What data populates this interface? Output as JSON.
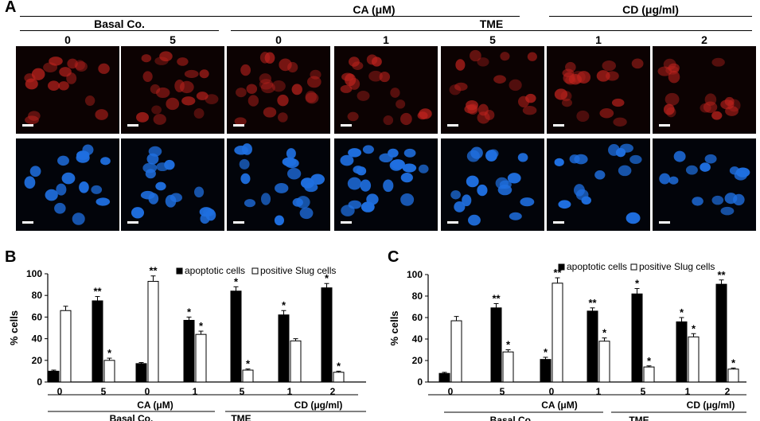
{
  "panel_a": {
    "letter": "A",
    "header_ca": "CA (μM)",
    "header_cd": "CD (μg/ml)",
    "group_basal": "Basal Co.",
    "group_tme": "TME",
    "conc_labels": [
      "0",
      "5",
      "0",
      "1",
      "5",
      "1",
      "2"
    ]
  },
  "panel_b": {
    "letter": "B"
  },
  "panel_c": {
    "letter": "C"
  },
  "chart_data": [
    {
      "type": "bar",
      "panel": "B",
      "ylabel": "% cells",
      "ylim": [
        0,
        100
      ],
      "yticks": [
        "0",
        "20",
        "40",
        "60",
        "80",
        "100"
      ],
      "categories": [
        "0",
        "5",
        "0",
        "1",
        "5",
        "1",
        "2"
      ],
      "series": [
        {
          "name": "apoptotic cells",
          "color": "#000000",
          "values": [
            10,
            75,
            17,
            57,
            84,
            62,
            87
          ],
          "errors": [
            1,
            4,
            1,
            3,
            4,
            4,
            4
          ],
          "marks": [
            "",
            "**",
            "",
            "*",
            "*",
            "*",
            "*"
          ]
        },
        {
          "name": "positive Slug cells",
          "color": "#ffffff",
          "values": [
            66,
            20,
            93,
            44,
            11,
            38,
            9
          ],
          "errors": [
            4,
            2,
            5,
            3,
            1,
            2,
            1
          ],
          "marks": [
            "",
            "*",
            "**",
            "*",
            "*",
            "",
            "*"
          ]
        }
      ],
      "group_labels": [
        "Basal Co.",
        "CA (μM)",
        "TME",
        "CD (μg/ml)"
      ],
      "legend_position": "top-right"
    },
    {
      "type": "bar",
      "panel": "C",
      "ylabel": "% cells",
      "ylim": [
        0,
        100
      ],
      "yticks": [
        "0",
        "20",
        "40",
        "60",
        "80",
        "100"
      ],
      "categories": [
        "0",
        "5",
        "0",
        "1",
        "5",
        "1",
        "2"
      ],
      "series": [
        {
          "name": "apoptotic cells",
          "color": "#000000",
          "values": [
            8,
            69,
            21,
            66,
            82,
            56,
            91
          ],
          "errors": [
            1,
            4,
            2,
            3,
            5,
            4,
            4
          ],
          "marks": [
            "",
            "**",
            "*",
            "**",
            "*",
            "*",
            "**"
          ]
        },
        {
          "name": "positive Slug cells",
          "color": "#ffffff",
          "values": [
            57,
            28,
            92,
            38,
            14,
            42,
            12
          ],
          "errors": [
            4,
            2,
            5,
            3,
            1,
            3,
            1
          ],
          "marks": [
            "",
            "*",
            "**",
            "*",
            "*",
            "*",
            "*"
          ]
        }
      ],
      "group_labels": [
        "Basal Co.",
        "CA (μM)",
        "TME",
        "CD (μg/ml)"
      ],
      "legend_position": "top-right"
    }
  ]
}
